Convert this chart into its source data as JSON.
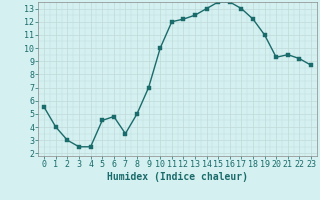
{
  "x": [
    0,
    1,
    2,
    3,
    4,
    5,
    6,
    7,
    8,
    9,
    10,
    11,
    12,
    13,
    14,
    15,
    16,
    17,
    18,
    19,
    20,
    21,
    22,
    23
  ],
  "y": [
    5.5,
    4.0,
    3.0,
    2.5,
    2.5,
    4.5,
    4.8,
    3.5,
    5.0,
    7.0,
    10.0,
    12.0,
    12.2,
    12.5,
    13.0,
    13.5,
    13.5,
    13.0,
    12.2,
    11.0,
    9.3,
    9.5,
    9.2,
    8.7
  ],
  "line_color": "#1a6b6b",
  "marker_color": "#1a6b6b",
  "bg_color": "#d5f0f0",
  "grid_color": "#c0dada",
  "xlabel": "Humidex (Indice chaleur)",
  "xlim_min": -0.5,
  "xlim_max": 23.5,
  "ylim_min": 1.8,
  "ylim_max": 13.5,
  "xticks": [
    0,
    1,
    2,
    3,
    4,
    5,
    6,
    7,
    8,
    9,
    10,
    11,
    12,
    13,
    14,
    15,
    16,
    17,
    18,
    19,
    20,
    21,
    22,
    23
  ],
  "yticks": [
    2,
    3,
    4,
    5,
    6,
    7,
    8,
    9,
    10,
    11,
    12,
    13
  ],
  "xlabel_fontsize": 7,
  "tick_fontsize": 6,
  "line_width": 1.0,
  "marker_size": 2.5
}
